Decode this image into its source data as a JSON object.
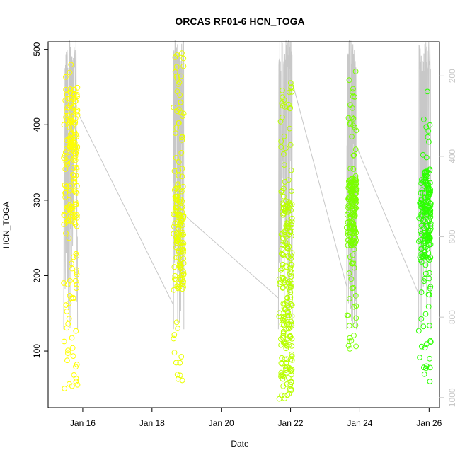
{
  "chart_data": {
    "type": "scatter",
    "title": "ORCAS RF01-6 HCN_TOGA",
    "xlabel": "Date",
    "ylabel": "HCN_TOGA",
    "x_unit": "days of January",
    "xlim": [
      15.0,
      26.3
    ],
    "ylim": [
      25,
      510
    ],
    "x_ticks": [
      16,
      18,
      20,
      22,
      24,
      26
    ],
    "x_tick_labels": [
      "Jan 16",
      "Jan 18",
      "Jan 20",
      "Jan 22",
      "Jan 24",
      "Jan 26"
    ],
    "y_ticks": [
      100,
      200,
      300,
      400,
      500
    ],
    "y_tick_labels": [
      "100",
      "200",
      "300",
      "400",
      "500"
    ],
    "right_axis": {
      "ticks": [
        200,
        400,
        600,
        800,
        1000
      ],
      "tick_labels": [
        "200",
        "400",
        "600",
        "800",
        "1000"
      ],
      "reversed": true,
      "range": [
        115,
        1025
      ],
      "color": "#c8c8c8"
    },
    "grid": false,
    "marker": "open-circle",
    "flights": [
      {
        "date": 15.65,
        "x_range": [
          15.45,
          15.85
        ],
        "points": 200,
        "color": "#ffff00",
        "y_range": [
          45,
          482
        ],
        "dense_range": [
          265,
          450
        ],
        "trace_bottom": 830,
        "trace_end": 290
      },
      {
        "date": 18.75,
        "x_range": [
          18.62,
          18.92
        ],
        "points": 170,
        "color": "#e9ff00",
        "y_range": [
          45,
          495
        ],
        "dense_range": [
          180,
          320
        ],
        "trace_bottom": 830,
        "trace_end": 545
      },
      {
        "date": 21.8,
        "x_range": [
          21.65,
          22.05
        ],
        "points": 230,
        "color": "#b9ff00",
        "y_range": [
          35,
          462
        ],
        "dense_range": [
          40,
          300
        ],
        "trace_bottom": 830,
        "trace_end": 215
      },
      {
        "date": 23.75,
        "x_range": [
          23.62,
          23.9
        ],
        "points": 190,
        "color": "#7aff00",
        "y_range": [
          98,
          472
        ],
        "dense_range": [
          240,
          330
        ],
        "trace_bottom": 830,
        "trace_end": 375
      },
      {
        "date": 25.85,
        "x_range": [
          25.7,
          26.05
        ],
        "points": 200,
        "color": "#2bff00",
        "y_range": [
          58,
          445
        ],
        "dense_range": [
          220,
          340
        ],
        "trace_bottom": 830,
        "trace_end": 365
      }
    ]
  }
}
